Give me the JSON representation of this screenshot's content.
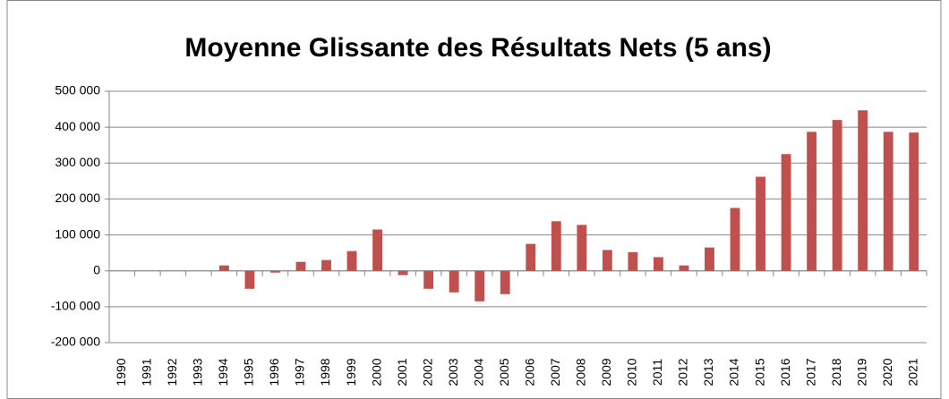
{
  "chart_data": {
    "type": "bar",
    "title": "Moyenne Glissante des Résultats Nets (5 ans)",
    "categories": [
      "1990",
      "1991",
      "1992",
      "1993",
      "1994",
      "1995",
      "1996",
      "1997",
      "1998",
      "1999",
      "2000",
      "2001",
      "2002",
      "2003",
      "2004",
      "2005",
      "2006",
      "2007",
      "2008",
      "2009",
      "2010",
      "2011",
      "2012",
      "2013",
      "2014",
      "2015",
      "2016",
      "2017",
      "2018",
      "2019",
      "2020",
      "2021"
    ],
    "values": [
      0,
      0,
      0,
      0,
      15000,
      -50000,
      -5000,
      25000,
      30000,
      55000,
      115000,
      -12000,
      -50000,
      -60000,
      -85000,
      -65000,
      75000,
      138000,
      128000,
      58000,
      52000,
      38000,
      15000,
      65000,
      175000,
      262000,
      325000,
      387000,
      420000,
      447000,
      387000,
      385000
    ],
    "color": "#c0504d",
    "ylim": [
      -200000,
      500000
    ],
    "yticks": [
      {
        "value": -200000,
        "label": "-200 000"
      },
      {
        "value": -100000,
        "label": "-100 000"
      },
      0,
      {
        "value": 100000,
        "label": "100 000"
      },
      {
        "value": 200000,
        "label": "200 000"
      },
      {
        "value": 300000,
        "label": "300 000"
      },
      {
        "value": 400000,
        "label": "400 000"
      },
      {
        "value": 500000,
        "label": "500 000"
      }
    ],
    "grid": true
  }
}
